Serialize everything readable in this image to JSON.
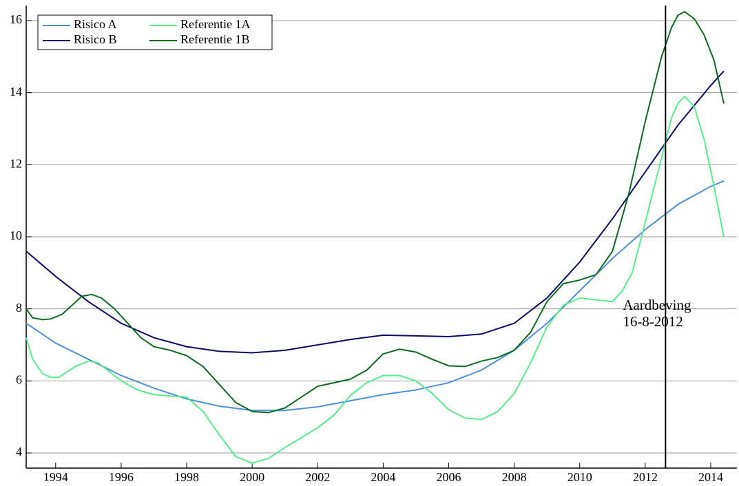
{
  "chart_data": {
    "type": "line",
    "xlim": [
      1993.1,
      2014.8
    ],
    "ylim": [
      3.58,
      16.42
    ],
    "xticks": [
      1994,
      1996,
      1998,
      2000,
      2002,
      2004,
      2006,
      2008,
      2010,
      2012,
      2014
    ],
    "yticks": [
      4,
      6,
      8,
      10,
      12,
      14,
      16
    ],
    "grid": true,
    "legend": "upper left",
    "series": [
      {
        "name": "Risico A",
        "color": "#4a8fe0",
        "x": [
          1993.1,
          1994,
          1995,
          1996,
          1997,
          1998,
          1999,
          2000,
          2001,
          2002,
          2003,
          2004,
          2005,
          2006,
          2007,
          2008,
          2009,
          2010,
          2011,
          2012,
          2013,
          2014,
          2014.4
        ],
        "values": [
          7.6,
          7.05,
          6.6,
          6.15,
          5.8,
          5.5,
          5.3,
          5.18,
          5.18,
          5.28,
          5.45,
          5.62,
          5.75,
          5.95,
          6.3,
          6.85,
          7.6,
          8.5,
          9.4,
          10.2,
          10.9,
          11.4,
          11.55
        ]
      },
      {
        "name": "Risico B",
        "color": "#0a0a6e",
        "x": [
          1993.1,
          1994,
          1995,
          1996,
          1997,
          1998,
          1999,
          2000,
          2001,
          2002,
          2003,
          2004,
          2005,
          2006,
          2007,
          2008,
          2009,
          2010,
          2011,
          2012,
          2013,
          2014,
          2014.4
        ],
        "values": [
          9.6,
          8.9,
          8.2,
          7.6,
          7.2,
          6.95,
          6.82,
          6.78,
          6.85,
          7.0,
          7.15,
          7.27,
          7.25,
          7.23,
          7.3,
          7.6,
          8.3,
          9.3,
          10.5,
          11.8,
          13.1,
          14.2,
          14.6
        ]
      },
      {
        "name": "Referentie 1A",
        "color": "#55ee88",
        "x": [
          1993.1,
          1993.3,
          1993.6,
          1993.85,
          1994.1,
          1994.6,
          1995,
          1995.3,
          1996,
          1996.5,
          1997,
          1997.5,
          1998,
          1998.5,
          1999,
          1999.5,
          2000,
          2000.5,
          2001,
          2002,
          2002.5,
          2003,
          2003.5,
          2004,
          2004.5,
          2005,
          2005.5,
          2006,
          2006.5,
          2007,
          2007.5,
          2008,
          2008.5,
          2009,
          2009.5,
          2010,
          2010.5,
          2011,
          2011.3,
          2011.6,
          2012,
          2012.5,
          2012.8,
          2013,
          2013.2,
          2013.5,
          2013.8,
          2014.1,
          2014.4
        ],
        "values": [
          7.2,
          6.6,
          6.2,
          6.1,
          6.1,
          6.4,
          6.55,
          6.5,
          6.0,
          5.75,
          5.62,
          5.58,
          5.55,
          5.15,
          4.5,
          3.9,
          3.72,
          3.85,
          4.15,
          4.7,
          5.05,
          5.6,
          5.95,
          6.15,
          6.15,
          6.0,
          5.65,
          5.2,
          4.97,
          4.93,
          5.15,
          5.65,
          6.5,
          7.5,
          8.1,
          8.3,
          8.25,
          8.2,
          8.5,
          9.0,
          10.4,
          12.2,
          13.3,
          13.7,
          13.9,
          13.6,
          12.7,
          11.4,
          10.0
        ]
      },
      {
        "name": "Referentie 1B",
        "color": "#0b6b1e",
        "x": [
          1993.1,
          1993.3,
          1993.6,
          1993.85,
          1994.2,
          1994.5,
          1994.8,
          1995.1,
          1995.4,
          1995.8,
          1996.2,
          1996.6,
          1997,
          1997.5,
          1998,
          1998.5,
          1999,
          1999.5,
          2000,
          2000.5,
          2001,
          2001.5,
          2002,
          2002.5,
          2003,
          2003.5,
          2004,
          2004.5,
          2005,
          2005.5,
          2006,
          2006.5,
          2007,
          2007.5,
          2008,
          2008.5,
          2009,
          2009.5,
          2010,
          2010.5,
          2011,
          2011.5,
          2012,
          2012.5,
          2012.8,
          2013,
          2013.2,
          2013.5,
          2013.8,
          2014.1,
          2014.4
        ],
        "values": [
          8.0,
          7.75,
          7.7,
          7.72,
          7.85,
          8.1,
          8.35,
          8.4,
          8.3,
          8.0,
          7.6,
          7.2,
          6.95,
          6.85,
          6.7,
          6.4,
          5.9,
          5.4,
          5.15,
          5.12,
          5.25,
          5.55,
          5.85,
          5.95,
          6.05,
          6.3,
          6.75,
          6.88,
          6.8,
          6.6,
          6.42,
          6.4,
          6.55,
          6.65,
          6.85,
          7.35,
          8.2,
          8.7,
          8.8,
          8.95,
          9.6,
          11.2,
          13.2,
          15.0,
          15.8,
          16.15,
          16.25,
          16.05,
          15.6,
          14.9,
          13.7
        ]
      }
    ],
    "annotation": {
      "x": 2012.62,
      "lines": [
        "Aardbeving",
        "16-8-2012"
      ]
    }
  }
}
